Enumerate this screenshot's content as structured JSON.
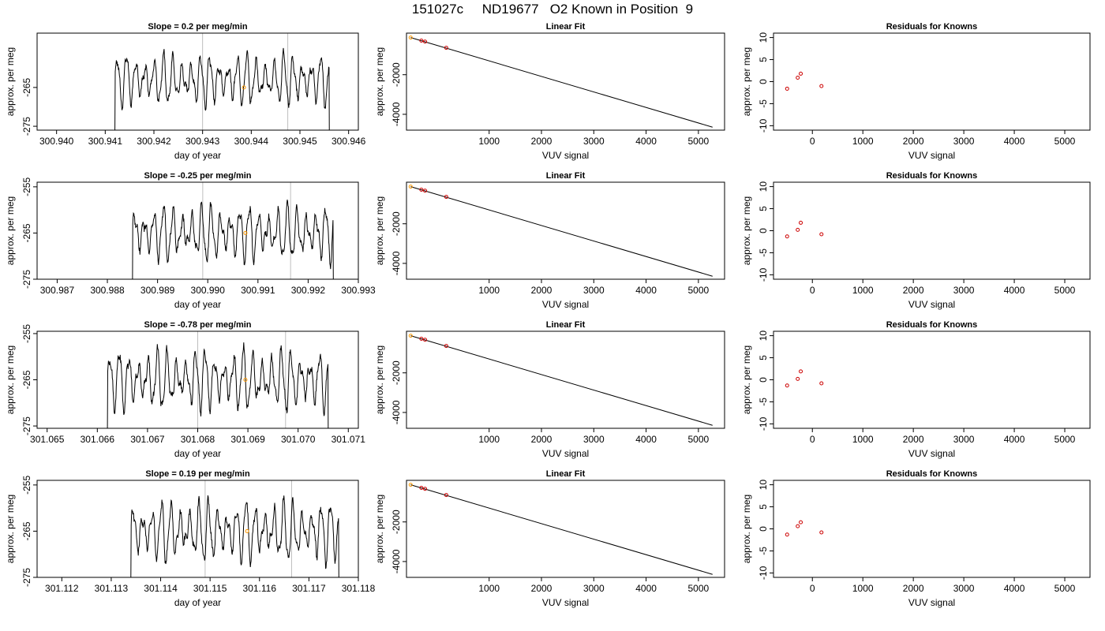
{
  "figure": {
    "title": "151027c     ND19677   O2 Known in Position  9"
  },
  "colors": {
    "trace": "#000000",
    "vline": "#bebebe",
    "point": "#cc0000",
    "highlight": "#ff9900",
    "frame": "#000000"
  },
  "chart_data": [
    {
      "type": "line",
      "panel": "ts1",
      "title": "Slope =  0.2  per meg/min",
      "xlabel": "day of year",
      "ylabel": "approx. per meg",
      "xlim": [
        300.9396,
        300.9462
      ],
      "ylim": [
        -276,
        -251
      ],
      "xticks": [
        "300.940",
        "300.941",
        "300.942",
        "300.943",
        "300.944",
        "300.945",
        "300.946"
      ],
      "yticks": [
        "-265",
        "-275"
      ],
      "trace_start": 300.941,
      "trace_end": 300.9457,
      "signal_start": 300.9412,
      "signal_end": 300.9456,
      "cycle_days": 0.00019,
      "mean": -263,
      "amplitude": 5.5,
      "vlines": [
        300.943,
        300.94475
      ],
      "highlight": {
        "x": 300.94385,
        "y": -265
      }
    },
    {
      "type": "scatter",
      "panel": "fit1",
      "title": "Linear Fit",
      "xlabel": "VUV signal",
      "ylabel": "approx. per meg",
      "xlim": [
        -580,
        5500
      ],
      "ylim": [
        -4800,
        100
      ],
      "xticks": [
        "1000",
        "2000",
        "3000",
        "4000",
        "5000"
      ],
      "yticks": [
        "-2000",
        "-4000"
      ],
      "points": [
        [
          -295,
          -280
        ],
        [
          -225,
          -330
        ],
        [
          180,
          -640
        ]
      ],
      "highlight_point": [
        -500,
        -125
      ],
      "line": [
        [
          -500,
          -125
        ],
        [
          5270,
          -4650
        ]
      ]
    },
    {
      "type": "scatter",
      "panel": "res1",
      "title": "Residuals for Knowns",
      "xlabel": "VUV signal",
      "ylabel": "approx. per meg",
      "xlim": [
        -770,
        5500
      ],
      "ylim": [
        -11,
        11
      ],
      "xticks": [
        "0",
        "1000",
        "2000",
        "3000",
        "4000",
        "5000"
      ],
      "yticks": [
        "10",
        "5",
        "0",
        "-5",
        "-10"
      ],
      "points": [
        [
          -500,
          -1.6
        ],
        [
          -290,
          0.9
        ],
        [
          -230,
          1.8
        ],
        [
          180,
          -1.0
        ]
      ]
    },
    {
      "type": "line",
      "panel": "ts2",
      "title": "Slope =  -0.25  per meg/min",
      "xlabel": "day of year",
      "ylabel": "approx. per meg",
      "xlim": [
        300.9866,
        300.993
      ],
      "ylim": [
        -275,
        -254
      ],
      "xticks": [
        "300.987",
        "300.988",
        "300.989",
        "300.990",
        "300.991",
        "300.992",
        "300.993"
      ],
      "yticks": [
        "-255",
        "-265",
        "-275"
      ],
      "trace_start": 300.9883,
      "trace_end": 300.9926,
      "signal_start": 300.9885,
      "signal_end": 300.9925,
      "cycle_days": 0.00019,
      "mean": -265,
      "amplitude": 5,
      "vlines": [
        300.9899,
        300.99165
      ],
      "highlight": {
        "x": 300.99075,
        "y": -265
      }
    },
    {
      "type": "scatter",
      "panel": "fit2",
      "title": "Linear Fit",
      "xlabel": "VUV signal",
      "ylabel": "approx. per meg",
      "xlim": [
        -580,
        5500
      ],
      "ylim": [
        -4800,
        100
      ],
      "xticks": [
        "1000",
        "2000",
        "3000",
        "4000",
        "5000"
      ],
      "yticks": [
        "-2000",
        "-4000"
      ],
      "points": [
        [
          -295,
          -280
        ],
        [
          -225,
          -330
        ],
        [
          180,
          -640
        ]
      ],
      "highlight_point": [
        -500,
        -125
      ],
      "line": [
        [
          -500,
          -125
        ],
        [
          5270,
          -4650
        ]
      ]
    },
    {
      "type": "scatter",
      "panel": "res2",
      "title": "Residuals for Knowns",
      "xlabel": "VUV signal",
      "ylabel": "approx. per meg",
      "xlim": [
        -770,
        5500
      ],
      "ylim": [
        -11,
        11
      ],
      "xticks": [
        "0",
        "1000",
        "2000",
        "3000",
        "4000",
        "5000"
      ],
      "yticks": [
        "10",
        "5",
        "0",
        "-5",
        "-10"
      ],
      "points": [
        [
          -500,
          -1.3
        ],
        [
          -290,
          0.2
        ],
        [
          -230,
          1.8
        ],
        [
          180,
          -0.8
        ]
      ]
    },
    {
      "type": "line",
      "panel": "ts3",
      "title": "Slope =  -0.78  per meg/min",
      "xlabel": "day of year",
      "ylabel": "approx. per meg",
      "xlim": [
        301.0648,
        301.0712
      ],
      "ylim": [
        -275.5,
        -254.5
      ],
      "xticks": [
        "301.065",
        "301.066",
        "301.067",
        "301.068",
        "301.069",
        "301.070",
        "301.071"
      ],
      "yticks": [
        "-255",
        "-265",
        "-275"
      ],
      "trace_start": 301.0661,
      "trace_end": 301.0707,
      "signal_start": 301.0662,
      "signal_end": 301.0706,
      "cycle_days": 0.00019,
      "mean": -265,
      "amplitude": 5.5,
      "vlines": [
        301.068,
        301.06975
      ],
      "highlight": {
        "x": 301.06895,
        "y": -265
      }
    },
    {
      "type": "scatter",
      "panel": "fit3",
      "title": "Linear Fit",
      "xlabel": "VUV signal",
      "ylabel": "approx. per meg",
      "xlim": [
        -580,
        5500
      ],
      "ylim": [
        -4800,
        100
      ],
      "xticks": [
        "1000",
        "2000",
        "3000",
        "4000",
        "5000"
      ],
      "yticks": [
        "-2000",
        "-4000"
      ],
      "points": [
        [
          -295,
          -280
        ],
        [
          -225,
          -330
        ],
        [
          180,
          -640
        ]
      ],
      "highlight_point": [
        -500,
        -125
      ],
      "line": [
        [
          -500,
          -125
        ],
        [
          5270,
          -4650
        ]
      ]
    },
    {
      "type": "scatter",
      "panel": "res3",
      "title": "Residuals for Knowns",
      "xlabel": "VUV signal",
      "ylabel": "approx. per meg",
      "xlim": [
        -770,
        5500
      ],
      "ylim": [
        -11,
        11
      ],
      "xticks": [
        "0",
        "1000",
        "2000",
        "3000",
        "4000",
        "5000"
      ],
      "yticks": [
        "10",
        "5",
        "0",
        "-5",
        "-10"
      ],
      "points": [
        [
          -500,
          -1.3
        ],
        [
          -290,
          0.2
        ],
        [
          -230,
          1.9
        ],
        [
          180,
          -0.8
        ]
      ]
    },
    {
      "type": "line",
      "panel": "ts4",
      "title": "Slope =  0.19  per meg/min",
      "xlabel": "day of year",
      "ylabel": "approx. per meg",
      "xlim": [
        301.1115,
        301.118
      ],
      "ylim": [
        -275,
        -254
      ],
      "xticks": [
        "301.112",
        "301.113",
        "301.114",
        "301.115",
        "301.116",
        "301.117",
        "301.118"
      ],
      "yticks": [
        "-255",
        "-265",
        "-275"
      ],
      "trace_start": 301.1131,
      "trace_end": 301.1177,
      "signal_start": 301.1134,
      "signal_end": 301.1176,
      "cycle_days": 0.00019,
      "mean": -265,
      "amplitude": 5.5,
      "vlines": [
        301.1149,
        301.11665
      ],
      "highlight": {
        "x": 301.11575,
        "y": -265
      }
    },
    {
      "type": "scatter",
      "panel": "fit4",
      "title": "Linear Fit",
      "xlabel": "VUV signal",
      "ylabel": "approx. per meg",
      "xlim": [
        -580,
        5500
      ],
      "ylim": [
        -4800,
        100
      ],
      "xticks": [
        "1000",
        "2000",
        "3000",
        "4000",
        "5000"
      ],
      "yticks": [
        "-2000",
        "-4000"
      ],
      "points": [
        [
          -295,
          -280
        ],
        [
          -225,
          -330
        ],
        [
          180,
          -640
        ]
      ],
      "highlight_point": [
        -500,
        -125
      ],
      "line": [
        [
          -500,
          -125
        ],
        [
          5270,
          -4650
        ]
      ]
    },
    {
      "type": "scatter",
      "panel": "res4",
      "title": "Residuals for Knowns",
      "xlabel": "VUV signal",
      "ylabel": "approx. per meg",
      "xlim": [
        -770,
        5500
      ],
      "ylim": [
        -11,
        11
      ],
      "xticks": [
        "0",
        "1000",
        "2000",
        "3000",
        "4000",
        "5000"
      ],
      "yticks": [
        "10",
        "5",
        "0",
        "-5",
        "-10"
      ],
      "points": [
        [
          -500,
          -1.3
        ],
        [
          -290,
          0.6
        ],
        [
          -230,
          1.5
        ],
        [
          180,
          -0.8
        ]
      ]
    }
  ]
}
